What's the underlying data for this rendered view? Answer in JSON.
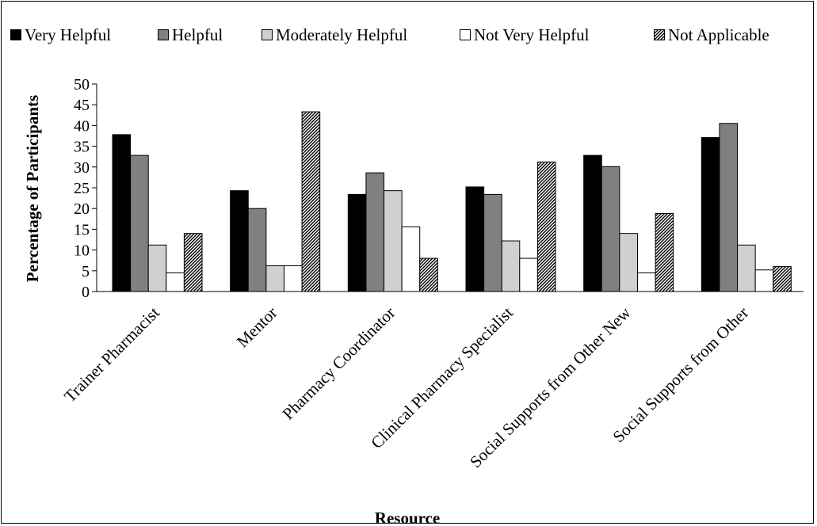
{
  "chart_data": {
    "type": "bar",
    "title": "",
    "xlabel": "Resource",
    "ylabel": "Percentage of Participants",
    "ylim": [
      0,
      50
    ],
    "yticks": [
      0,
      5,
      10,
      15,
      20,
      25,
      30,
      35,
      40,
      45,
      50
    ],
    "grid": false,
    "legend_position": "top",
    "categories": [
      "Trainer Pharmacist",
      "Mentor",
      "Pharmacy Coordinator",
      "Clinical Pharmacy Specialist",
      "Social Supports from Other New",
      "Social Supports from Other"
    ],
    "series": [
      {
        "name": "Very Helpful",
        "color": "#000000",
        "pattern": "solid",
        "values": [
          37.8,
          24.3,
          23.4,
          25.2,
          32.8,
          37.1
        ]
      },
      {
        "name": "Helpful",
        "color": "#808080",
        "pattern": "solid",
        "values": [
          32.8,
          20.0,
          28.6,
          23.4,
          30.1,
          40.5
        ]
      },
      {
        "name": "Moderately Helpful",
        "color": "#d0d0d0",
        "pattern": "solid",
        "values": [
          11.2,
          6.2,
          24.3,
          12.2,
          14.0,
          11.2
        ]
      },
      {
        "name": "Not Very Helpful",
        "color": "#ffffff",
        "pattern": "solid",
        "values": [
          4.5,
          6.2,
          15.6,
          8.0,
          4.5,
          5.2
        ]
      },
      {
        "name": "Not Applicable",
        "color": "#ffffff",
        "pattern": "diagonal-hatch",
        "values": [
          14.0,
          43.3,
          8.0,
          31.2,
          18.8,
          6.0
        ]
      }
    ]
  }
}
